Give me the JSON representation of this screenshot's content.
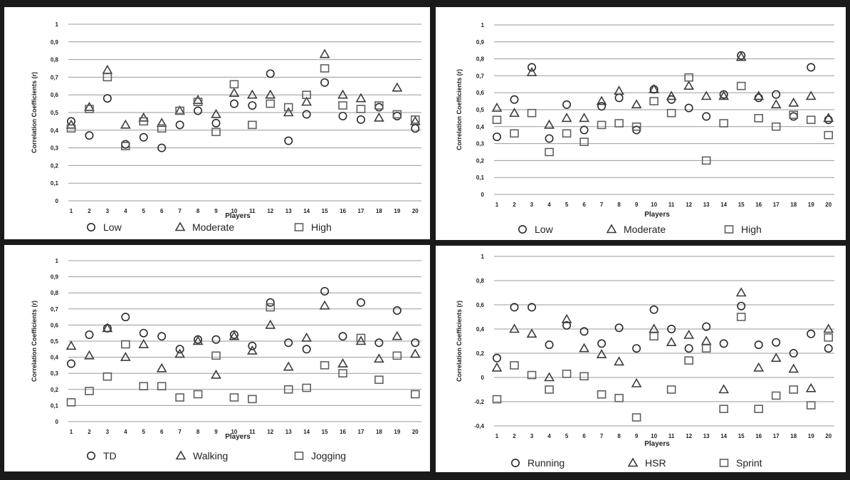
{
  "colors": {
    "frame": "#1a1a1a",
    "marker": "#2a2a2a",
    "grid": "#9a9a9a"
  },
  "chart_data": [
    {
      "type": "scatter",
      "xlabel": "Players",
      "ylabel": "Correlation Coefficients (r)",
      "ylim": [
        0,
        1
      ],
      "yticks": [
        "0",
        "0,1",
        "0,2",
        "0,3",
        "0,4",
        "0,5",
        "0,6",
        "0,7",
        "0,8",
        "0,9",
        "1"
      ],
      "ytick_values": [
        0,
        0.1,
        0.2,
        0.3,
        0.4,
        0.5,
        0.6,
        0.7,
        0.8,
        0.9,
        1
      ],
      "x": [
        1,
        2,
        3,
        4,
        5,
        6,
        7,
        8,
        9,
        10,
        11,
        12,
        13,
        14,
        15,
        16,
        17,
        18,
        19,
        20
      ],
      "legend_position": "bottom",
      "series": [
        {
          "name": "Low",
          "marker": "circle",
          "values": [
            0.45,
            0.37,
            0.58,
            0.32,
            0.36,
            0.3,
            0.43,
            0.51,
            0.44,
            0.55,
            0.54,
            0.72,
            0.34,
            0.49,
            0.67,
            0.48,
            0.46,
            0.53,
            0.48,
            0.41
          ]
        },
        {
          "name": "Moderate",
          "marker": "triangle",
          "values": [
            0.43,
            0.53,
            0.74,
            0.43,
            0.47,
            0.44,
            0.51,
            0.57,
            0.49,
            0.61,
            0.6,
            0.6,
            0.5,
            0.56,
            0.83,
            0.6,
            0.58,
            0.47,
            0.64,
            0.45
          ]
        },
        {
          "name": "High",
          "marker": "square",
          "values": [
            0.41,
            0.52,
            0.7,
            0.31,
            0.45,
            0.41,
            0.51,
            0.56,
            0.39,
            0.66,
            0.43,
            0.55,
            0.53,
            0.6,
            0.75,
            0.54,
            0.52,
            0.54,
            0.49,
            0.46
          ]
        }
      ]
    },
    {
      "type": "scatter",
      "xlabel": "Players",
      "ylabel": "Correlation Coefficients (r)",
      "ylim": [
        0,
        1
      ],
      "yticks": [
        "0",
        "0,1",
        "0,2",
        "0,3",
        "0,4",
        "0,5",
        "0,6",
        "0,7",
        "0,8",
        "0,9",
        "1"
      ],
      "ytick_values": [
        0,
        0.1,
        0.2,
        0.3,
        0.4,
        0.5,
        0.6,
        0.7,
        0.8,
        0.9,
        1
      ],
      "x": [
        1,
        2,
        3,
        4,
        5,
        6,
        7,
        8,
        9,
        10,
        11,
        12,
        13,
        14,
        15,
        16,
        17,
        18,
        19,
        20
      ],
      "legend_position": "bottom",
      "series": [
        {
          "name": "Low",
          "marker": "circle",
          "values": [
            0.34,
            0.56,
            0.75,
            0.33,
            0.53,
            0.38,
            0.52,
            0.57,
            0.38,
            0.62,
            0.56,
            0.51,
            0.46,
            0.59,
            0.82,
            0.57,
            0.59,
            0.46,
            0.75,
            0.44
          ]
        },
        {
          "name": "Moderate",
          "marker": "triangle",
          "values": [
            0.51,
            0.48,
            0.72,
            0.41,
            0.45,
            0.45,
            0.55,
            0.61,
            0.53,
            0.62,
            0.58,
            0.64,
            0.58,
            0.58,
            0.81,
            0.58,
            0.53,
            0.54,
            0.58,
            0.45
          ]
        },
        {
          "name": "High",
          "marker": "square",
          "values": [
            0.44,
            0.36,
            0.48,
            0.25,
            0.36,
            0.31,
            0.41,
            0.42,
            0.4,
            0.55,
            0.48,
            0.69,
            0.2,
            0.42,
            0.64,
            0.45,
            0.4,
            0.47,
            0.44,
            0.35
          ]
        }
      ]
    },
    {
      "type": "scatter",
      "xlabel": "Players",
      "ylabel": "Correlation Coefficients (r)",
      "ylim": [
        0,
        1
      ],
      "yticks": [
        "0",
        "0,1",
        "0,2",
        "0,3",
        "0,4",
        "0,5",
        "0,6",
        "0,7",
        "0,8",
        "0,9",
        "1"
      ],
      "ytick_values": [
        0,
        0.1,
        0.2,
        0.3,
        0.4,
        0.5,
        0.6,
        0.7,
        0.8,
        0.9,
        1
      ],
      "x": [
        1,
        2,
        3,
        4,
        5,
        6,
        7,
        8,
        9,
        10,
        11,
        12,
        13,
        14,
        15,
        16,
        17,
        18,
        19,
        20
      ],
      "legend_position": "bottom",
      "series": [
        {
          "name": "TD",
          "marker": "circle",
          "values": [
            0.36,
            0.54,
            0.58,
            0.65,
            0.55,
            0.53,
            0.45,
            0.51,
            0.51,
            0.54,
            0.47,
            0.74,
            0.49,
            0.45,
            0.81,
            0.53,
            0.74,
            0.49,
            0.69,
            0.49
          ]
        },
        {
          "name": "Walking",
          "marker": "triangle",
          "values": [
            0.47,
            0.41,
            0.58,
            0.4,
            0.48,
            0.33,
            0.42,
            0.5,
            0.29,
            0.53,
            0.44,
            0.6,
            0.34,
            0.52,
            0.72,
            0.36,
            0.5,
            0.39,
            0.53,
            0.42
          ]
        },
        {
          "name": "Jogging",
          "marker": "square",
          "values": [
            0.12,
            0.19,
            0.28,
            0.48,
            0.22,
            0.22,
            0.15,
            0.17,
            0.41,
            0.15,
            0.14,
            0.71,
            0.2,
            0.21,
            0.35,
            0.3,
            0.52,
            0.26,
            0.41,
            0.17
          ]
        }
      ]
    },
    {
      "type": "scatter",
      "xlabel": "Players",
      "ylabel": "Correlation Coefficients (r)",
      "ylim": [
        -0.4,
        1
      ],
      "yticks": [
        "-0,4",
        "-0,2",
        "0",
        "0,2",
        "0,4",
        "0,6",
        "0,8",
        "1"
      ],
      "ytick_values": [
        -0.4,
        -0.2,
        0,
        0.2,
        0.4,
        0.6,
        0.8,
        1
      ],
      "x": [
        1,
        2,
        3,
        4,
        5,
        6,
        7,
        8,
        9,
        10,
        11,
        12,
        13,
        14,
        15,
        16,
        17,
        18,
        19,
        20
      ],
      "legend_position": "bottom",
      "series": [
        {
          "name": "Running",
          "marker": "circle",
          "values": [
            0.16,
            0.58,
            0.58,
            0.27,
            0.43,
            0.38,
            0.28,
            0.41,
            0.24,
            0.56,
            0.4,
            0.24,
            0.42,
            0.28,
            0.59,
            0.27,
            0.29,
            0.2,
            0.36,
            0.24
          ]
        },
        {
          "name": "HSR",
          "marker": "triangle",
          "values": [
            0.08,
            0.4,
            0.36,
            0.0,
            0.48,
            0.24,
            0.19,
            0.13,
            -0.05,
            0.4,
            0.29,
            0.35,
            0.3,
            -0.1,
            0.7,
            0.08,
            0.16,
            0.07,
            -0.09,
            0.4
          ]
        },
        {
          "name": "Sprint",
          "marker": "square",
          "values": [
            -0.18,
            0.1,
            0.02,
            -0.1,
            0.03,
            0.01,
            -0.14,
            -0.17,
            -0.33,
            0.34,
            -0.1,
            0.14,
            0.24,
            -0.26,
            0.5,
            -0.26,
            -0.15,
            -0.1,
            -0.23,
            0.33
          ]
        }
      ]
    }
  ]
}
